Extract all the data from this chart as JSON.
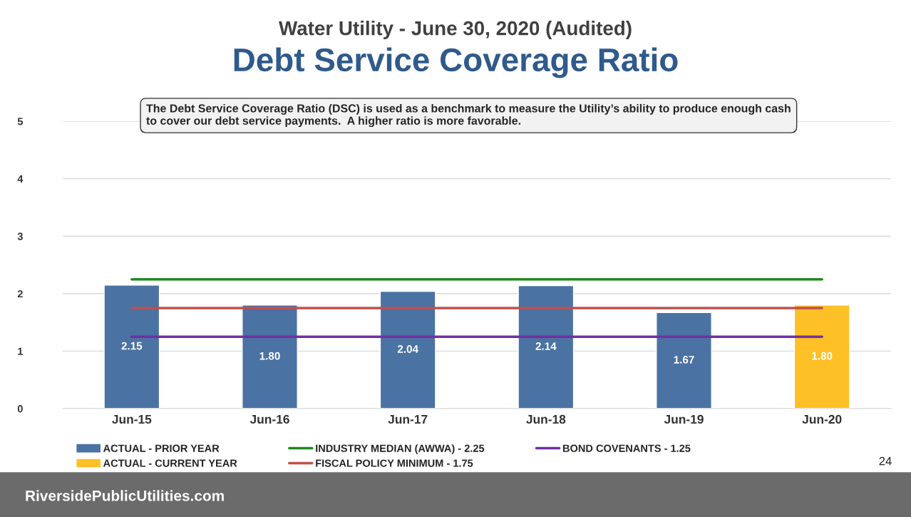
{
  "chart_data": {
    "type": "bar",
    "subtitle": "Water Utility - June 30, 2020 (Audited)",
    "title": "Debt Service Coverage Ratio",
    "categories": [
      "Jun-15",
      "Jun-16",
      "Jun-17",
      "Jun-18",
      "Jun-19",
      "Jun-20"
    ],
    "series": [
      {
        "name": "ACTUAL - PRIOR YEAR",
        "color": "#4a72a2",
        "values": [
          2.15,
          1.8,
          2.04,
          2.14,
          1.67,
          null
        ],
        "value_labels": [
          "2.15",
          "1.80",
          "2.04",
          "2.14",
          "1.67",
          null
        ]
      },
      {
        "name": "ACTUAL - CURRENT YEAR",
        "color": "#fdc026",
        "values": [
          null,
          null,
          null,
          null,
          null,
          1.8
        ],
        "value_labels": [
          null,
          null,
          null,
          null,
          null,
          "1.80"
        ]
      },
      {
        "name": "INDUSTRY MEDIAN (AWWA) - 2.25",
        "color": "#1e8a1e",
        "type": "line",
        "values": [
          2.25,
          2.25,
          2.25,
          2.25,
          2.25,
          2.25
        ]
      },
      {
        "name": "FISCAL POLICY MINIMUM - 1.75",
        "color": "#c0504d",
        "type": "line",
        "values": [
          1.75,
          1.75,
          1.75,
          1.75,
          1.75,
          1.75
        ]
      },
      {
        "name": "BOND COVENANTS - 1.25",
        "color": "#7030a0",
        "type": "line",
        "values": [
          1.25,
          1.25,
          1.25,
          1.25,
          1.25,
          1.25
        ]
      }
    ],
    "ylim": [
      0,
      5
    ],
    "yticks": [
      0,
      1,
      2,
      3,
      4,
      5
    ],
    "grid": "y",
    "legend": "bottom",
    "marker": "none",
    "annotations": [
      "The Debt Service Coverage Ratio (DSC) is used as a benchmark to measure the Utility’s ability to produce enough cash to cover our debt service payments.  A higher ratio is more favorable.",
      "24",
      "RiversidePublicUtilities.com"
    ]
  }
}
